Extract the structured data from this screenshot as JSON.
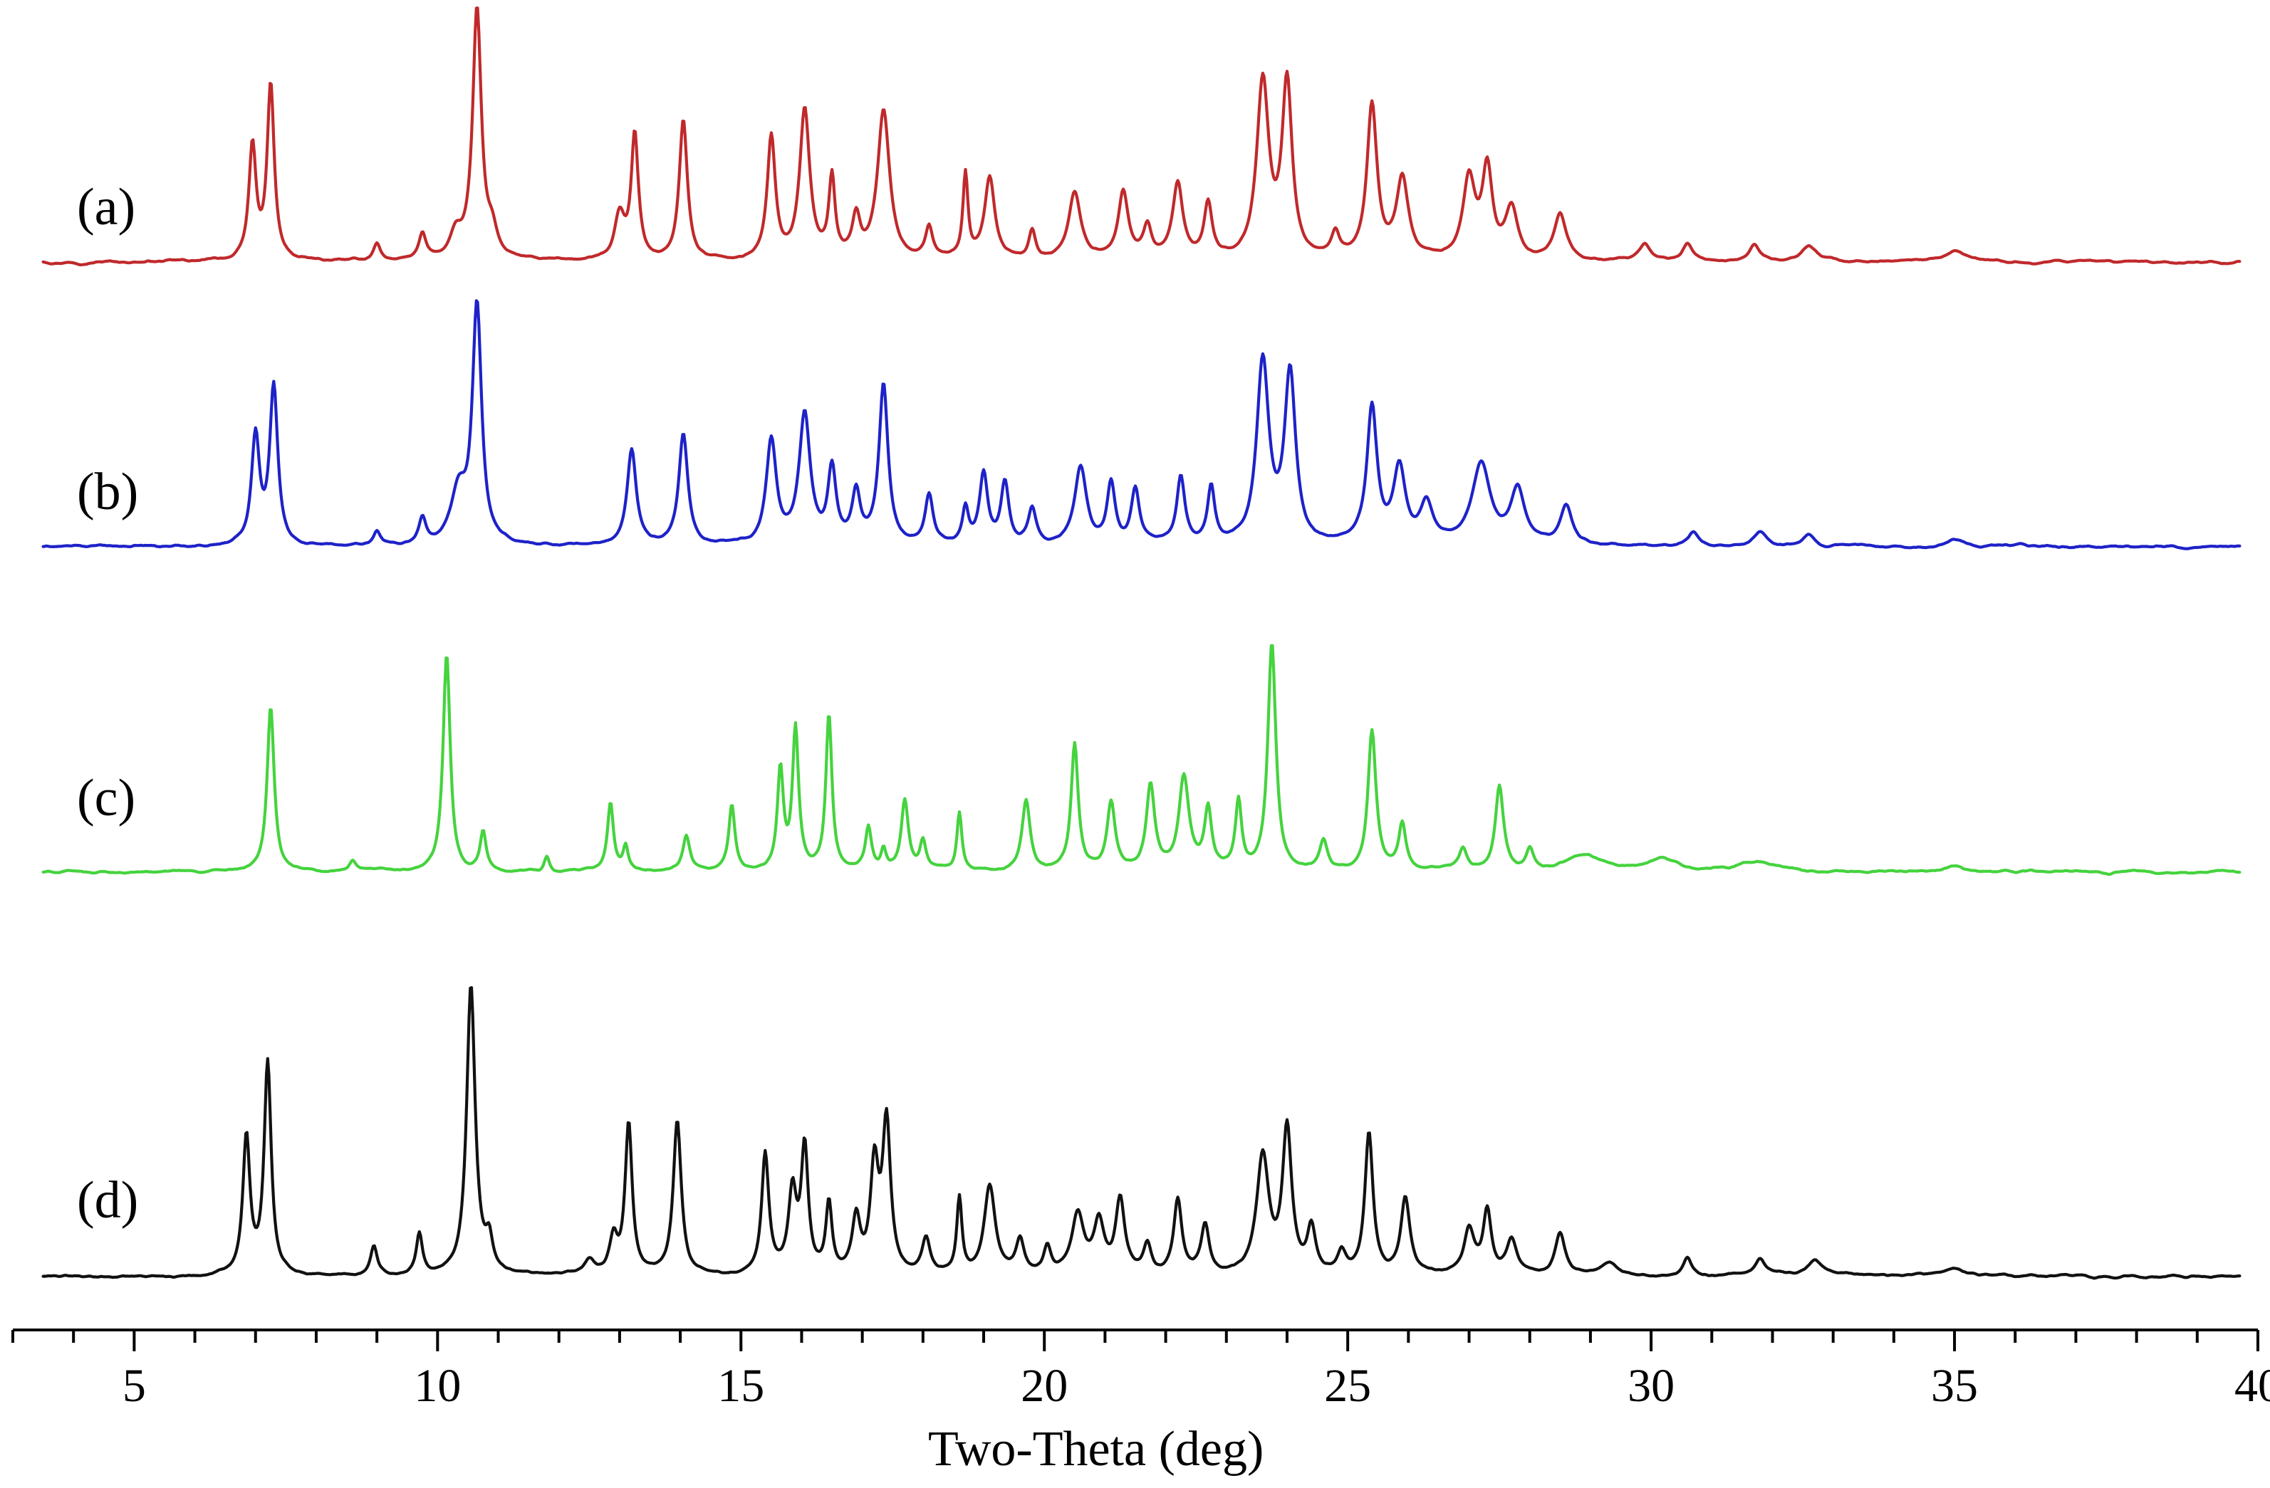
{
  "chart_data": {
    "type": "line",
    "title": "",
    "xlabel": "Two-Theta (deg)",
    "ylabel": "",
    "xlim": [
      3,
      40
    ],
    "x_ticks": [
      5,
      10,
      15,
      20,
      25,
      30,
      35,
      40
    ],
    "minor_tick_step": 1,
    "grid": false,
    "legend": "none",
    "series": [
      {
        "name": "(a)",
        "color": "#c0292b",
        "baseline": 0.02,
        "peaks": [
          [
            6.95,
            0.46,
            0.07
          ],
          [
            7.25,
            0.7,
            0.07
          ],
          [
            9.0,
            0.07,
            0.07
          ],
          [
            9.75,
            0.1,
            0.07
          ],
          [
            10.3,
            0.1,
            0.12
          ],
          [
            10.65,
            1.0,
            0.085
          ],
          [
            10.9,
            0.1,
            0.1
          ],
          [
            13.0,
            0.18,
            0.1
          ],
          [
            13.25,
            0.5,
            0.07
          ],
          [
            14.05,
            0.56,
            0.08
          ],
          [
            15.5,
            0.49,
            0.08
          ],
          [
            16.05,
            0.6,
            0.1
          ],
          [
            16.5,
            0.32,
            0.06
          ],
          [
            16.9,
            0.16,
            0.08
          ],
          [
            17.35,
            0.6,
            0.12
          ],
          [
            18.1,
            0.12,
            0.07
          ],
          [
            18.7,
            0.34,
            0.05
          ],
          [
            19.1,
            0.33,
            0.1
          ],
          [
            19.8,
            0.12,
            0.07
          ],
          [
            20.5,
            0.27,
            0.12
          ],
          [
            21.3,
            0.27,
            0.1
          ],
          [
            21.7,
            0.12,
            0.08
          ],
          [
            22.2,
            0.3,
            0.1
          ],
          [
            22.7,
            0.22,
            0.08
          ],
          [
            23.6,
            0.7,
            0.12
          ],
          [
            24.0,
            0.7,
            0.1
          ],
          [
            24.8,
            0.1,
            0.08
          ],
          [
            25.4,
            0.61,
            0.1
          ],
          [
            25.9,
            0.32,
            0.12
          ],
          [
            27.0,
            0.32,
            0.12
          ],
          [
            27.3,
            0.35,
            0.1
          ],
          [
            27.7,
            0.2,
            0.12
          ],
          [
            28.5,
            0.18,
            0.12
          ],
          [
            29.9,
            0.06,
            0.1
          ],
          [
            30.6,
            0.07,
            0.1
          ],
          [
            31.7,
            0.07,
            0.1
          ],
          [
            32.6,
            0.06,
            0.15
          ],
          [
            35.0,
            0.04,
            0.18
          ]
        ]
      },
      {
        "name": "(b)",
        "color": "#1e22c8",
        "baseline": 0.02,
        "peaks": [
          [
            7.0,
            0.44,
            0.08
          ],
          [
            7.3,
            0.63,
            0.08
          ],
          [
            9.0,
            0.06,
            0.07
          ],
          [
            9.75,
            0.1,
            0.07
          ],
          [
            10.35,
            0.2,
            0.15
          ],
          [
            10.65,
            0.95,
            0.09
          ],
          [
            13.2,
            0.38,
            0.09
          ],
          [
            14.05,
            0.45,
            0.09
          ],
          [
            15.5,
            0.42,
            0.1
          ],
          [
            16.05,
            0.52,
            0.11
          ],
          [
            16.5,
            0.3,
            0.08
          ],
          [
            16.9,
            0.2,
            0.08
          ],
          [
            17.35,
            0.64,
            0.09
          ],
          [
            18.1,
            0.2,
            0.08
          ],
          [
            18.7,
            0.14,
            0.06
          ],
          [
            19.0,
            0.28,
            0.08
          ],
          [
            19.35,
            0.25,
            0.08
          ],
          [
            19.8,
            0.14,
            0.08
          ],
          [
            20.6,
            0.31,
            0.12
          ],
          [
            21.1,
            0.24,
            0.08
          ],
          [
            21.5,
            0.22,
            0.08
          ],
          [
            22.25,
            0.27,
            0.08
          ],
          [
            22.75,
            0.22,
            0.07
          ],
          [
            23.6,
            0.73,
            0.12
          ],
          [
            24.05,
            0.68,
            0.11
          ],
          [
            25.4,
            0.54,
            0.1
          ],
          [
            25.85,
            0.3,
            0.12
          ],
          [
            26.3,
            0.16,
            0.12
          ],
          [
            27.2,
            0.32,
            0.18
          ],
          [
            27.8,
            0.22,
            0.14
          ],
          [
            28.6,
            0.15,
            0.12
          ],
          [
            30.7,
            0.06,
            0.1
          ],
          [
            31.8,
            0.06,
            0.12
          ],
          [
            32.6,
            0.05,
            0.12
          ],
          [
            35.0,
            0.03,
            0.2
          ]
        ]
      },
      {
        "name": "(c)",
        "color": "#45d33e",
        "baseline": 0.02,
        "peaks": [
          [
            7.25,
            0.66,
            0.07
          ],
          [
            8.6,
            0.04,
            0.06
          ],
          [
            10.15,
            0.87,
            0.07
          ],
          [
            10.75,
            0.16,
            0.06
          ],
          [
            11.8,
            0.06,
            0.05
          ],
          [
            12.85,
            0.28,
            0.06
          ],
          [
            13.1,
            0.1,
            0.05
          ],
          [
            14.1,
            0.14,
            0.07
          ],
          [
            14.85,
            0.26,
            0.06
          ],
          [
            15.65,
            0.4,
            0.06
          ],
          [
            15.9,
            0.56,
            0.06
          ],
          [
            16.45,
            0.63,
            0.06
          ],
          [
            17.1,
            0.17,
            0.06
          ],
          [
            17.35,
            0.08,
            0.05
          ],
          [
            17.7,
            0.28,
            0.07
          ],
          [
            18.0,
            0.12,
            0.06
          ],
          [
            18.6,
            0.24,
            0.05
          ],
          [
            19.7,
            0.28,
            0.08
          ],
          [
            20.5,
            0.51,
            0.07
          ],
          [
            21.1,
            0.27,
            0.08
          ],
          [
            21.75,
            0.34,
            0.08
          ],
          [
            22.3,
            0.37,
            0.1
          ],
          [
            22.7,
            0.24,
            0.07
          ],
          [
            23.2,
            0.27,
            0.06
          ],
          [
            23.75,
            0.91,
            0.08
          ],
          [
            24.6,
            0.12,
            0.08
          ],
          [
            25.4,
            0.57,
            0.08
          ],
          [
            25.9,
            0.18,
            0.07
          ],
          [
            26.9,
            0.09,
            0.08
          ],
          [
            27.5,
            0.34,
            0.08
          ],
          [
            28.0,
            0.08,
            0.07
          ],
          [
            28.9,
            0.06,
            0.4
          ],
          [
            30.2,
            0.05,
            0.3
          ],
          [
            31.7,
            0.04,
            0.4
          ],
          [
            35.0,
            0.03,
            0.2
          ]
        ]
      },
      {
        "name": "(d)",
        "color": "#111111",
        "baseline": 0.02,
        "peaks": [
          [
            6.85,
            0.55,
            0.07
          ],
          [
            7.2,
            0.85,
            0.07
          ],
          [
            8.95,
            0.12,
            0.07
          ],
          [
            9.7,
            0.16,
            0.06
          ],
          [
            10.55,
            1.17,
            0.085
          ],
          [
            10.85,
            0.12,
            0.07
          ],
          [
            12.5,
            0.06,
            0.1
          ],
          [
            12.9,
            0.14,
            0.08
          ],
          [
            13.15,
            0.6,
            0.07
          ],
          [
            13.95,
            0.62,
            0.08
          ],
          [
            15.4,
            0.48,
            0.07
          ],
          [
            15.85,
            0.32,
            0.08
          ],
          [
            16.05,
            0.5,
            0.07
          ],
          [
            16.45,
            0.28,
            0.06
          ],
          [
            16.9,
            0.22,
            0.08
          ],
          [
            17.2,
            0.42,
            0.08
          ],
          [
            17.4,
            0.6,
            0.08
          ],
          [
            18.05,
            0.14,
            0.08
          ],
          [
            18.6,
            0.3,
            0.05
          ],
          [
            19.1,
            0.36,
            0.11
          ],
          [
            19.6,
            0.14,
            0.08
          ],
          [
            20.05,
            0.1,
            0.07
          ],
          [
            20.55,
            0.24,
            0.12
          ],
          [
            20.9,
            0.2,
            0.1
          ],
          [
            21.25,
            0.3,
            0.09
          ],
          [
            21.7,
            0.12,
            0.08
          ],
          [
            22.2,
            0.3,
            0.08
          ],
          [
            22.65,
            0.2,
            0.08
          ],
          [
            23.6,
            0.47,
            0.12
          ],
          [
            24.0,
            0.57,
            0.09
          ],
          [
            24.4,
            0.18,
            0.08
          ],
          [
            24.9,
            0.08,
            0.08
          ],
          [
            25.35,
            0.56,
            0.08
          ],
          [
            25.95,
            0.3,
            0.09
          ],
          [
            27.0,
            0.18,
            0.1
          ],
          [
            27.3,
            0.25,
            0.08
          ],
          [
            27.7,
            0.14,
            0.1
          ],
          [
            28.5,
            0.17,
            0.1
          ],
          [
            29.3,
            0.05,
            0.2
          ],
          [
            30.6,
            0.07,
            0.08
          ],
          [
            31.8,
            0.07,
            0.1
          ],
          [
            32.7,
            0.06,
            0.15
          ],
          [
            35.0,
            0.03,
            0.3
          ]
        ]
      }
    ]
  }
}
